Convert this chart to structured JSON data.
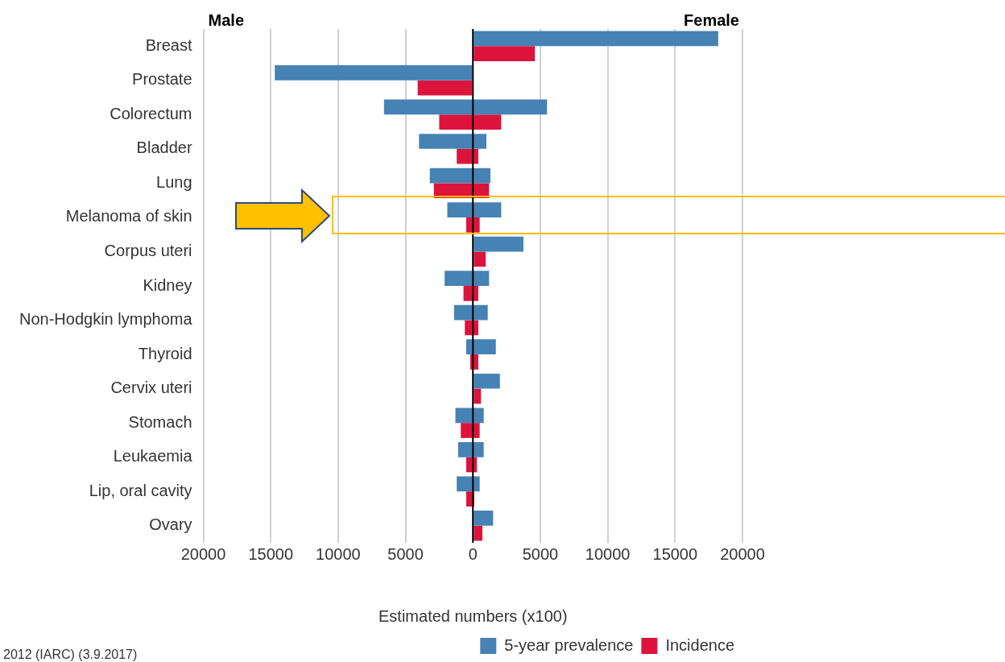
{
  "chart_data": {
    "type": "bar",
    "orientation": "horizontal",
    "xlabel": "Estimated numbers (x100)",
    "categories": [
      "Breast",
      "Prostate",
      "Colorectum",
      "Bladder",
      "Lung",
      "Melanoma of skin",
      "Corpus uteri",
      "Kidney",
      "Non-Hodgkin lymphoma",
      "Thyroid",
      "Cervix uteri",
      "Stomach",
      "Leukaemia",
      "Lip, oral cavity",
      "Ovary"
    ],
    "series": [
      {
        "name": "5-year prevalence",
        "color": "#4682b4",
        "base": [
          0,
          -14700,
          -6600,
          -4000,
          -3200,
          -1900,
          0,
          -2100,
          -1400,
          -500,
          0,
          -1300,
          -1100,
          -1200,
          0
        ],
        "values": [
          18200,
          14700,
          12100,
          5000,
          4500,
          4000,
          3750,
          3300,
          2500,
          2200,
          2000,
          2100,
          1900,
          1700,
          1500
        ]
      },
      {
        "name": "Incidence",
        "color": "#dc143c",
        "base": [
          0,
          -4100,
          -2500,
          -1200,
          -2900,
          -500,
          0,
          -700,
          -600,
          -200,
          0,
          -900,
          -500,
          -500,
          0
        ],
        "values": [
          4600,
          4100,
          4600,
          1600,
          4100,
          1000,
          950,
          1100,
          1000,
          600,
          600,
          1400,
          800,
          600,
          700
        ]
      }
    ],
    "xlim": [
      -20000,
      20000
    ],
    "xticks": [
      {
        "value": -20000,
        "label": "20000"
      },
      {
        "value": -15000,
        "label": "15000"
      },
      {
        "value": -10000,
        "label": "10000"
      },
      {
        "value": -5000,
        "label": "5000"
      },
      0,
      5000,
      10000,
      15000,
      20000
    ],
    "grid": "x",
    "legend": "bottom right",
    "annotations": [
      "Male",
      "Female",
      "2012 (IARC) (3.9.2017)"
    ]
  }
}
